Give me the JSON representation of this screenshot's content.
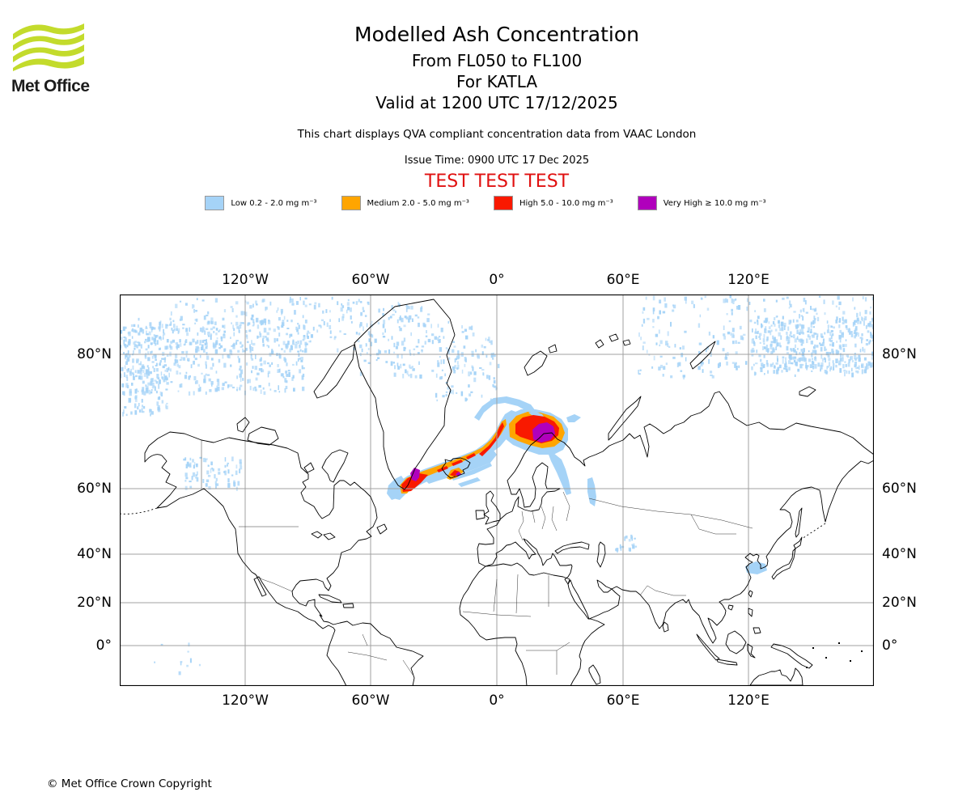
{
  "header": {
    "logo_text": "Met Office",
    "title": "Modelled Ash Concentration",
    "subtitle1": "From FL050 to FL100",
    "subtitle2": "For KATLA",
    "subtitle3": "Valid at 1200 UTC 17/12/2025",
    "description": "This chart displays QVA compliant concentration data from VAAC London",
    "issue_time": "Issue Time: 0900 UTC 17 Dec 2025",
    "test_banner": "TEST TEST TEST"
  },
  "legend": {
    "items": [
      {
        "label": "Low 0.2 - 2.0 mg m⁻³",
        "color": "#a5d3f7"
      },
      {
        "label": "Medium 2.0 - 5.0 mg m⁻³",
        "color": "#ffa500"
      },
      {
        "label": "High 5.0 - 10.0 mg m⁻³",
        "color": "#f91900"
      },
      {
        "label": "Very High  ≥  10.0 mg m⁻³",
        "color": "#b000bc"
      }
    ]
  },
  "map": {
    "x_ticks": [
      {
        "label": "120°W",
        "x": 155
      },
      {
        "label": "60°W",
        "x": 310
      },
      {
        "label": "0°",
        "x": 466
      },
      {
        "label": "60°E",
        "x": 622
      },
      {
        "label": "120°E",
        "x": 777
      }
    ],
    "y_ticks": [
      {
        "label": "80°N",
        "y": 74
      },
      {
        "label": "60°N",
        "y": 240
      },
      {
        "label": "40°N",
        "y": 321
      },
      {
        "label": "20°N",
        "y": 381
      },
      {
        "label": "0°",
        "y": 434
      }
    ]
  },
  "chart_data": {
    "type": "map",
    "title": "Modelled Ash Concentration",
    "projection": "world map with graticule",
    "gridlines": {
      "longitude": [
        "120°W",
        "60°W",
        "0°",
        "60°E",
        "120°E"
      ],
      "latitude": [
        "80°N",
        "60°N",
        "40°N",
        "20°N",
        "0°"
      ]
    },
    "concentration_bands": [
      {
        "level": "Low",
        "range": "0.2 - 2.0 mg m⁻³",
        "color": "#a5d3f7"
      },
      {
        "level": "Medium",
        "range": "2.0 - 5.0 mg m⁻³",
        "color": "#ffa500"
      },
      {
        "level": "High",
        "range": "5.0 - 10.0 mg m⁻³",
        "color": "#f91900"
      },
      {
        "level": "Very High",
        "range": "≥ 10.0 mg m⁻³",
        "color": "#b000bc"
      }
    ],
    "ash_regions": [
      {
        "description": "Narrow plume from SE Greenland coast past Iceland extending northeast with orange/red core and purple maxima",
        "max_level": "Very High"
      },
      {
        "description": "Crescent-shaped concentration area over the northern Norway coast",
        "max_level": "Very High"
      },
      {
        "description": "Hooked filament near 0° longitude north of the main plume",
        "max_level": "High"
      },
      {
        "description": "Widespread speckled low concentration across the Arctic Ocean at high latitudes",
        "max_level": "Low"
      },
      {
        "description": "Small low patches over NW Canada, the White Sea region, the Aral region and the Yellow Sea near Korea",
        "max_level": "Low"
      }
    ]
  },
  "footer": {
    "copyright": "© Met Office Crown Copyright"
  }
}
